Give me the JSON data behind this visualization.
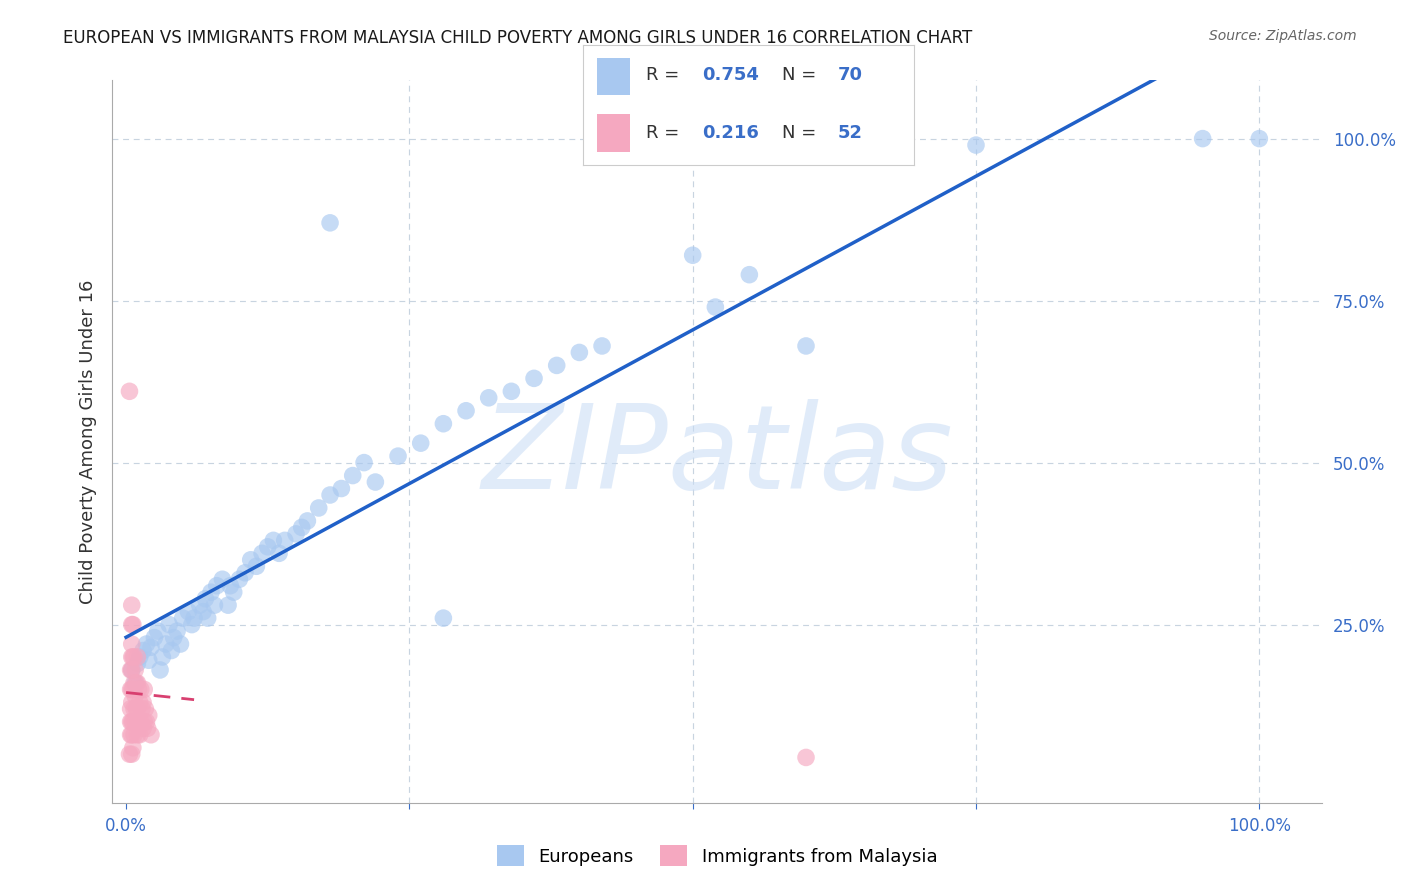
{
  "title": "EUROPEAN VS IMMIGRANTS FROM MALAYSIA CHILD POVERTY AMONG GIRLS UNDER 16 CORRELATION CHART",
  "source": "Source: ZipAtlas.com",
  "ylabel": "Child Poverty Among Girls Under 16",
  "blue_R": 0.754,
  "blue_N": 70,
  "pink_R": 0.216,
  "pink_N": 52,
  "blue_color": "#A8C8F0",
  "pink_color": "#F5A8C0",
  "blue_line_color": "#2060C8",
  "pink_line_color": "#D84070",
  "watermark_color": "#C8DCF5",
  "watermark_alpha": 0.55,
  "background_color": "#FFFFFF",
  "grid_color": "#C8D4E0",
  "tick_color": "#3A6EC8",
  "title_color": "#1A1A1A",
  "source_color": "#666666",
  "marker_size": 160,
  "marker_alpha": 0.65,
  "legend_border_color": "#CCCCCC",
  "blue_x": [
    0.005,
    0.008,
    0.01,
    0.012,
    0.015,
    0.018,
    0.02,
    0.022,
    0.025,
    0.028,
    0.03,
    0.032,
    0.035,
    0.038,
    0.04,
    0.042,
    0.045,
    0.048,
    0.05,
    0.055,
    0.058,
    0.06,
    0.065,
    0.068,
    0.07,
    0.072,
    0.075,
    0.078,
    0.08,
    0.085,
    0.09,
    0.092,
    0.095,
    0.1,
    0.105,
    0.11,
    0.115,
    0.12,
    0.125,
    0.13,
    0.135,
    0.14,
    0.15,
    0.155,
    0.16,
    0.17,
    0.18,
    0.19,
    0.2,
    0.21,
    0.22,
    0.24,
    0.26,
    0.28,
    0.3,
    0.32,
    0.34,
    0.36,
    0.38,
    0.4,
    0.18,
    0.42,
    0.5,
    0.52,
    0.6,
    0.75,
    0.95,
    1.0,
    0.28,
    0.55
  ],
  "blue_y": [
    0.18,
    0.16,
    0.19,
    0.2,
    0.21,
    0.22,
    0.195,
    0.215,
    0.23,
    0.24,
    0.18,
    0.2,
    0.22,
    0.25,
    0.21,
    0.23,
    0.24,
    0.22,
    0.26,
    0.27,
    0.25,
    0.26,
    0.28,
    0.27,
    0.29,
    0.26,
    0.3,
    0.28,
    0.31,
    0.32,
    0.28,
    0.31,
    0.3,
    0.32,
    0.33,
    0.35,
    0.34,
    0.36,
    0.37,
    0.38,
    0.36,
    0.38,
    0.39,
    0.4,
    0.41,
    0.43,
    0.45,
    0.46,
    0.48,
    0.5,
    0.47,
    0.51,
    0.53,
    0.56,
    0.58,
    0.6,
    0.61,
    0.63,
    0.65,
    0.67,
    0.87,
    0.68,
    0.82,
    0.74,
    0.68,
    0.99,
    1.0,
    1.0,
    0.26,
    0.79
  ],
  "pink_x": [
    0.003,
    0.004,
    0.004,
    0.004,
    0.004,
    0.004,
    0.005,
    0.005,
    0.005,
    0.005,
    0.005,
    0.005,
    0.005,
    0.005,
    0.005,
    0.005,
    0.006,
    0.006,
    0.006,
    0.006,
    0.006,
    0.007,
    0.007,
    0.007,
    0.007,
    0.008,
    0.008,
    0.008,
    0.009,
    0.009,
    0.01,
    0.01,
    0.01,
    0.01,
    0.011,
    0.011,
    0.012,
    0.012,
    0.013,
    0.013,
    0.014,
    0.015,
    0.015,
    0.016,
    0.016,
    0.017,
    0.018,
    0.019,
    0.02,
    0.022,
    0.6,
    0.003
  ],
  "pink_y": [
    0.05,
    0.08,
    0.1,
    0.12,
    0.15,
    0.18,
    0.05,
    0.08,
    0.1,
    0.13,
    0.15,
    0.18,
    0.2,
    0.22,
    0.25,
    0.28,
    0.06,
    0.1,
    0.15,
    0.2,
    0.25,
    0.08,
    0.12,
    0.16,
    0.2,
    0.1,
    0.14,
    0.18,
    0.12,
    0.16,
    0.08,
    0.12,
    0.16,
    0.2,
    0.1,
    0.15,
    0.08,
    0.13,
    0.1,
    0.15,
    0.12,
    0.09,
    0.13,
    0.1,
    0.15,
    0.12,
    0.1,
    0.09,
    0.11,
    0.08,
    0.045,
    0.61
  ]
}
